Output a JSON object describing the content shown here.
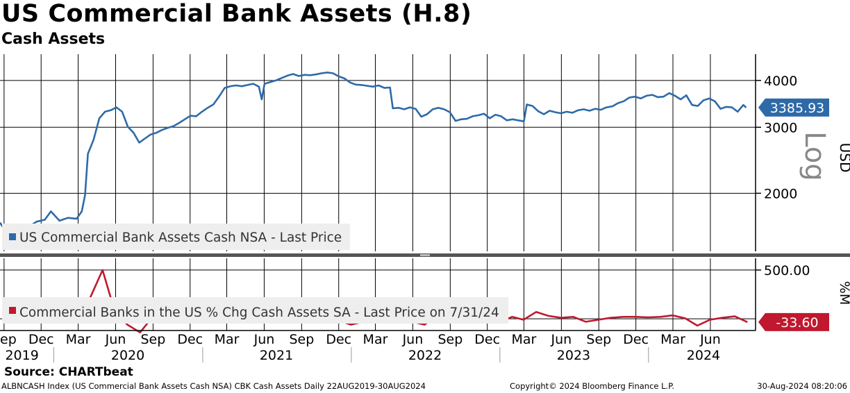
{
  "header": {
    "title": "US Commercial Bank Assets (H.8)",
    "subtitle": "Cash Assets"
  },
  "source": "Source: CHARTbeat",
  "footer": {
    "left": "ALBNCASH Index (US Commercial Bank Assets Cash NSA) CBK Cash Assets  Daily 22AUG2019-30AUG2024",
    "middle": "Copyright© 2024 Bloomberg Finance L.P.",
    "right": "30-Aug-2024 08:20:06"
  },
  "colors": {
    "upper_series": "#2e6aa8",
    "lower_series": "#c0182e",
    "grid": "#000000",
    "legend_bg": "#eeeeee",
    "separator": "#444444"
  },
  "chart_data": [
    {
      "type": "line",
      "title": "Cash Assets",
      "ylabel": "USD",
      "scale_label": "Log",
      "log_scale": true,
      "ylim": [
        1400,
        4700
      ],
      "y_ticks": [
        "4000",
        "3000",
        "2000"
      ],
      "grid": true,
      "legend_position": "bottom-left",
      "series": [
        {
          "name": "US Commercial Bank Assets Cash NSA - Last Price",
          "last_value_label": "3385.93",
          "points": [
            [
              "2019-08-22",
              1670
            ],
            [
              "2019-09-05",
              1580
            ],
            [
              "2019-09-20",
              1500
            ],
            [
              "2019-10-02",
              1610
            ],
            [
              "2019-10-17",
              1540
            ],
            [
              "2019-11-01",
              1630
            ],
            [
              "2019-11-20",
              1680
            ],
            [
              "2019-12-10",
              1700
            ],
            [
              "2019-12-25",
              1790
            ],
            [
              "2020-01-15",
              1690
            ],
            [
              "2020-02-05",
              1720
            ],
            [
              "2020-02-26",
              1710
            ],
            [
              "2020-03-10",
              1790
            ],
            [
              "2020-03-18",
              1980
            ],
            [
              "2020-03-25",
              2550
            ],
            [
              "2020-04-08",
              2780
            ],
            [
              "2020-04-22",
              3170
            ],
            [
              "2020-05-06",
              3300
            ],
            [
              "2020-05-20",
              3330
            ],
            [
              "2020-06-03",
              3390
            ],
            [
              "2020-06-17",
              3300
            ],
            [
              "2020-07-01",
              3010
            ],
            [
              "2020-07-15",
              2900
            ],
            [
              "2020-07-29",
              2730
            ],
            [
              "2020-08-12",
              2800
            ],
            [
              "2020-08-26",
              2870
            ],
            [
              "2020-09-09",
              2900
            ],
            [
              "2020-09-23",
              2950
            ],
            [
              "2020-10-07",
              2990
            ],
            [
              "2020-10-21",
              3020
            ],
            [
              "2020-11-04",
              3080
            ],
            [
              "2020-11-18",
              3150
            ],
            [
              "2020-12-02",
              3220
            ],
            [
              "2020-12-16",
              3210
            ],
            [
              "2020-12-30",
              3300
            ],
            [
              "2021-01-13",
              3380
            ],
            [
              "2021-01-27",
              3450
            ],
            [
              "2021-02-10",
              3620
            ],
            [
              "2021-02-24",
              3820
            ],
            [
              "2021-03-10",
              3860
            ],
            [
              "2021-03-24",
              3880
            ],
            [
              "2021-04-07",
              3860
            ],
            [
              "2021-04-21",
              3890
            ],
            [
              "2021-05-05",
              3920
            ],
            [
              "2021-05-19",
              3850
            ],
            [
              "2021-05-26",
              3560
            ],
            [
              "2021-06-02",
              3920
            ],
            [
              "2021-06-16",
              3960
            ],
            [
              "2021-06-30",
              4000
            ],
            [
              "2021-07-14",
              4060
            ],
            [
              "2021-07-28",
              4120
            ],
            [
              "2021-08-11",
              4160
            ],
            [
              "2021-08-25",
              4110
            ],
            [
              "2021-09-08",
              4140
            ],
            [
              "2021-09-22",
              4130
            ],
            [
              "2021-10-06",
              4150
            ],
            [
              "2021-10-20",
              4180
            ],
            [
              "2021-11-03",
              4200
            ],
            [
              "2021-11-17",
              4180
            ],
            [
              "2021-12-01",
              4100
            ],
            [
              "2021-12-15",
              4050
            ],
            [
              "2021-12-29",
              3950
            ],
            [
              "2022-01-12",
              3900
            ],
            [
              "2022-01-26",
              3890
            ],
            [
              "2022-02-09",
              3870
            ],
            [
              "2022-02-23",
              3850
            ],
            [
              "2022-03-09",
              3880
            ],
            [
              "2022-03-23",
              3820
            ],
            [
              "2022-04-06",
              3830
            ],
            [
              "2022-04-13",
              3370
            ],
            [
              "2022-04-27",
              3380
            ],
            [
              "2022-05-11",
              3350
            ],
            [
              "2022-05-25",
              3390
            ],
            [
              "2022-06-08",
              3360
            ],
            [
              "2022-06-22",
              3200
            ],
            [
              "2022-07-06",
              3250
            ],
            [
              "2022-07-20",
              3350
            ],
            [
              "2022-08-03",
              3380
            ],
            [
              "2022-08-17",
              3350
            ],
            [
              "2022-08-31",
              3290
            ],
            [
              "2022-09-14",
              3120
            ],
            [
              "2022-09-28",
              3150
            ],
            [
              "2022-10-12",
              3160
            ],
            [
              "2022-10-26",
              3210
            ],
            [
              "2022-11-09",
              3230
            ],
            [
              "2022-11-23",
              3260
            ],
            [
              "2022-12-07",
              3170
            ],
            [
              "2022-12-21",
              3240
            ],
            [
              "2023-01-04",
              3210
            ],
            [
              "2023-01-18",
              3130
            ],
            [
              "2023-02-01",
              3150
            ],
            [
              "2023-02-15",
              3130
            ],
            [
              "2023-03-01",
              3110
            ],
            [
              "2023-03-08",
              3450
            ],
            [
              "2023-03-22",
              3420
            ],
            [
              "2023-04-05",
              3310
            ],
            [
              "2023-04-19",
              3250
            ],
            [
              "2023-05-03",
              3320
            ],
            [
              "2023-05-17",
              3290
            ],
            [
              "2023-05-31",
              3270
            ],
            [
              "2023-06-14",
              3300
            ],
            [
              "2023-06-28",
              3280
            ],
            [
              "2023-07-12",
              3330
            ],
            [
              "2023-07-26",
              3350
            ],
            [
              "2023-08-09",
              3320
            ],
            [
              "2023-08-23",
              3360
            ],
            [
              "2023-09-06",
              3340
            ],
            [
              "2023-09-20",
              3390
            ],
            [
              "2023-10-04",
              3410
            ],
            [
              "2023-10-18",
              3480
            ],
            [
              "2023-11-01",
              3520
            ],
            [
              "2023-11-15",
              3600
            ],
            [
              "2023-11-29",
              3620
            ],
            [
              "2023-12-13",
              3580
            ],
            [
              "2023-12-27",
              3640
            ],
            [
              "2024-01-10",
              3660
            ],
            [
              "2024-01-24",
              3610
            ],
            [
              "2024-02-07",
              3620
            ],
            [
              "2024-02-21",
              3700
            ],
            [
              "2024-03-06",
              3640
            ],
            [
              "2024-03-20",
              3560
            ],
            [
              "2024-04-03",
              3650
            ],
            [
              "2024-04-17",
              3440
            ],
            [
              "2024-05-01",
              3420
            ],
            [
              "2024-05-15",
              3540
            ],
            [
              "2024-05-29",
              3580
            ],
            [
              "2024-06-12",
              3520
            ],
            [
              "2024-06-26",
              3360
            ],
            [
              "2024-07-10",
              3400
            ],
            [
              "2024-07-24",
              3390
            ],
            [
              "2024-08-07",
              3300
            ],
            [
              "2024-08-21",
              3440
            ],
            [
              "2024-08-28",
              3385.93
            ]
          ]
        }
      ]
    },
    {
      "type": "line",
      "ylabel": "%M",
      "ylim": [
        -120,
        620
      ],
      "y_ticks": [
        "500.00"
      ],
      "grid": true,
      "legend_position": "bottom-left",
      "series": [
        {
          "name": "Commercial Banks in the US % Chg Cash Assets SA - Last Price on 7/31/24",
          "last_value_label": "-33.60",
          "points": [
            [
              "2019-08-31",
              0
            ],
            [
              "2019-09-30",
              -30
            ],
            [
              "2019-10-31",
              30
            ],
            [
              "2019-11-30",
              -10
            ],
            [
              "2019-12-31",
              25
            ],
            [
              "2020-01-31",
              -15
            ],
            [
              "2020-02-29",
              10
            ],
            [
              "2020-03-31",
              220
            ],
            [
              "2020-04-30",
              500
            ],
            [
              "2020-05-31",
              60
            ],
            [
              "2020-06-30",
              -60
            ],
            [
              "2020-07-31",
              -140
            ],
            [
              "2020-08-31",
              20
            ],
            [
              "2020-09-30",
              10
            ],
            [
              "2020-10-31",
              40
            ],
            [
              "2020-11-30",
              15
            ],
            [
              "2020-12-31",
              25
            ],
            [
              "2021-01-31",
              40
            ],
            [
              "2021-02-28",
              75
            ],
            [
              "2021-03-31",
              80
            ],
            [
              "2021-04-30",
              -30
            ],
            [
              "2021-05-31",
              30
            ],
            [
              "2021-06-30",
              45
            ],
            [
              "2021-07-31",
              35
            ],
            [
              "2021-08-31",
              -10
            ],
            [
              "2021-09-30",
              5
            ],
            [
              "2021-10-31",
              20
            ],
            [
              "2021-11-30",
              -15
            ],
            [
              "2021-12-31",
              -60
            ],
            [
              "2022-01-31",
              -30
            ],
            [
              "2022-02-28",
              -20
            ],
            [
              "2022-03-31",
              -40
            ],
            [
              "2022-04-30",
              -10
            ],
            [
              "2022-05-31",
              -30
            ],
            [
              "2022-06-30",
              -60
            ],
            [
              "2022-07-31",
              40
            ],
            [
              "2022-08-31",
              -20
            ],
            [
              "2022-09-30",
              -30
            ],
            [
              "2022-10-31",
              -25
            ],
            [
              "2022-11-30",
              -15
            ],
            [
              "2022-12-31",
              -35
            ],
            [
              "2023-01-31",
              20
            ],
            [
              "2023-02-28",
              -10
            ],
            [
              "2023-03-31",
              70
            ],
            [
              "2023-04-30",
              30
            ],
            [
              "2023-05-31",
              10
            ],
            [
              "2023-06-30",
              20
            ],
            [
              "2023-07-31",
              -30
            ],
            [
              "2023-08-31",
              -10
            ],
            [
              "2023-09-30",
              10
            ],
            [
              "2023-10-31",
              20
            ],
            [
              "2023-11-30",
              20
            ],
            [
              "2023-12-31",
              15
            ],
            [
              "2024-01-31",
              20
            ],
            [
              "2024-02-29",
              35
            ],
            [
              "2024-03-31",
              5
            ],
            [
              "2024-04-30",
              -70
            ],
            [
              "2024-05-31",
              -10
            ],
            [
              "2024-06-30",
              10
            ],
            [
              "2024-07-31",
              25
            ],
            [
              "2024-08-31",
              -33.6
            ]
          ]
        }
      ]
    }
  ],
  "x_axis": {
    "months": [
      {
        "date": "2019-09-01",
        "label": "Sep"
      },
      {
        "date": "2019-12-01",
        "label": "Dec"
      },
      {
        "date": "2020-03-01",
        "label": "Mar"
      },
      {
        "date": "2020-06-01",
        "label": "Jun"
      },
      {
        "date": "2020-09-01",
        "label": "Sep"
      },
      {
        "date": "2020-12-01",
        "label": "Dec"
      },
      {
        "date": "2021-03-01",
        "label": "Mar"
      },
      {
        "date": "2021-06-01",
        "label": "Jun"
      },
      {
        "date": "2021-09-01",
        "label": "Sep"
      },
      {
        "date": "2021-12-01",
        "label": "Dec"
      },
      {
        "date": "2022-03-01",
        "label": "Mar"
      },
      {
        "date": "2022-06-01",
        "label": "Jun"
      },
      {
        "date": "2022-09-01",
        "label": "Sep"
      },
      {
        "date": "2022-12-01",
        "label": "Dec"
      },
      {
        "date": "2023-03-01",
        "label": "Mar"
      },
      {
        "date": "2023-06-01",
        "label": "Jun"
      },
      {
        "date": "2023-09-01",
        "label": "Sep"
      },
      {
        "date": "2023-12-01",
        "label": "Dec"
      },
      {
        "date": "2024-03-01",
        "label": "Mar"
      },
      {
        "date": "2024-06-01",
        "label": "Jun"
      }
    ],
    "years": [
      {
        "date": "2019-10-15",
        "label": "2019"
      },
      {
        "date": "2020-07-01",
        "label": "2020"
      },
      {
        "date": "2021-07-01",
        "label": "2021"
      },
      {
        "date": "2022-07-01",
        "label": "2022"
      },
      {
        "date": "2023-07-01",
        "label": "2023"
      },
      {
        "date": "2024-05-15",
        "label": "2024"
      }
    ],
    "year_boundaries": [
      "2020-01-01",
      "2021-01-01",
      "2022-01-01",
      "2023-01-01",
      "2024-01-01"
    ]
  }
}
